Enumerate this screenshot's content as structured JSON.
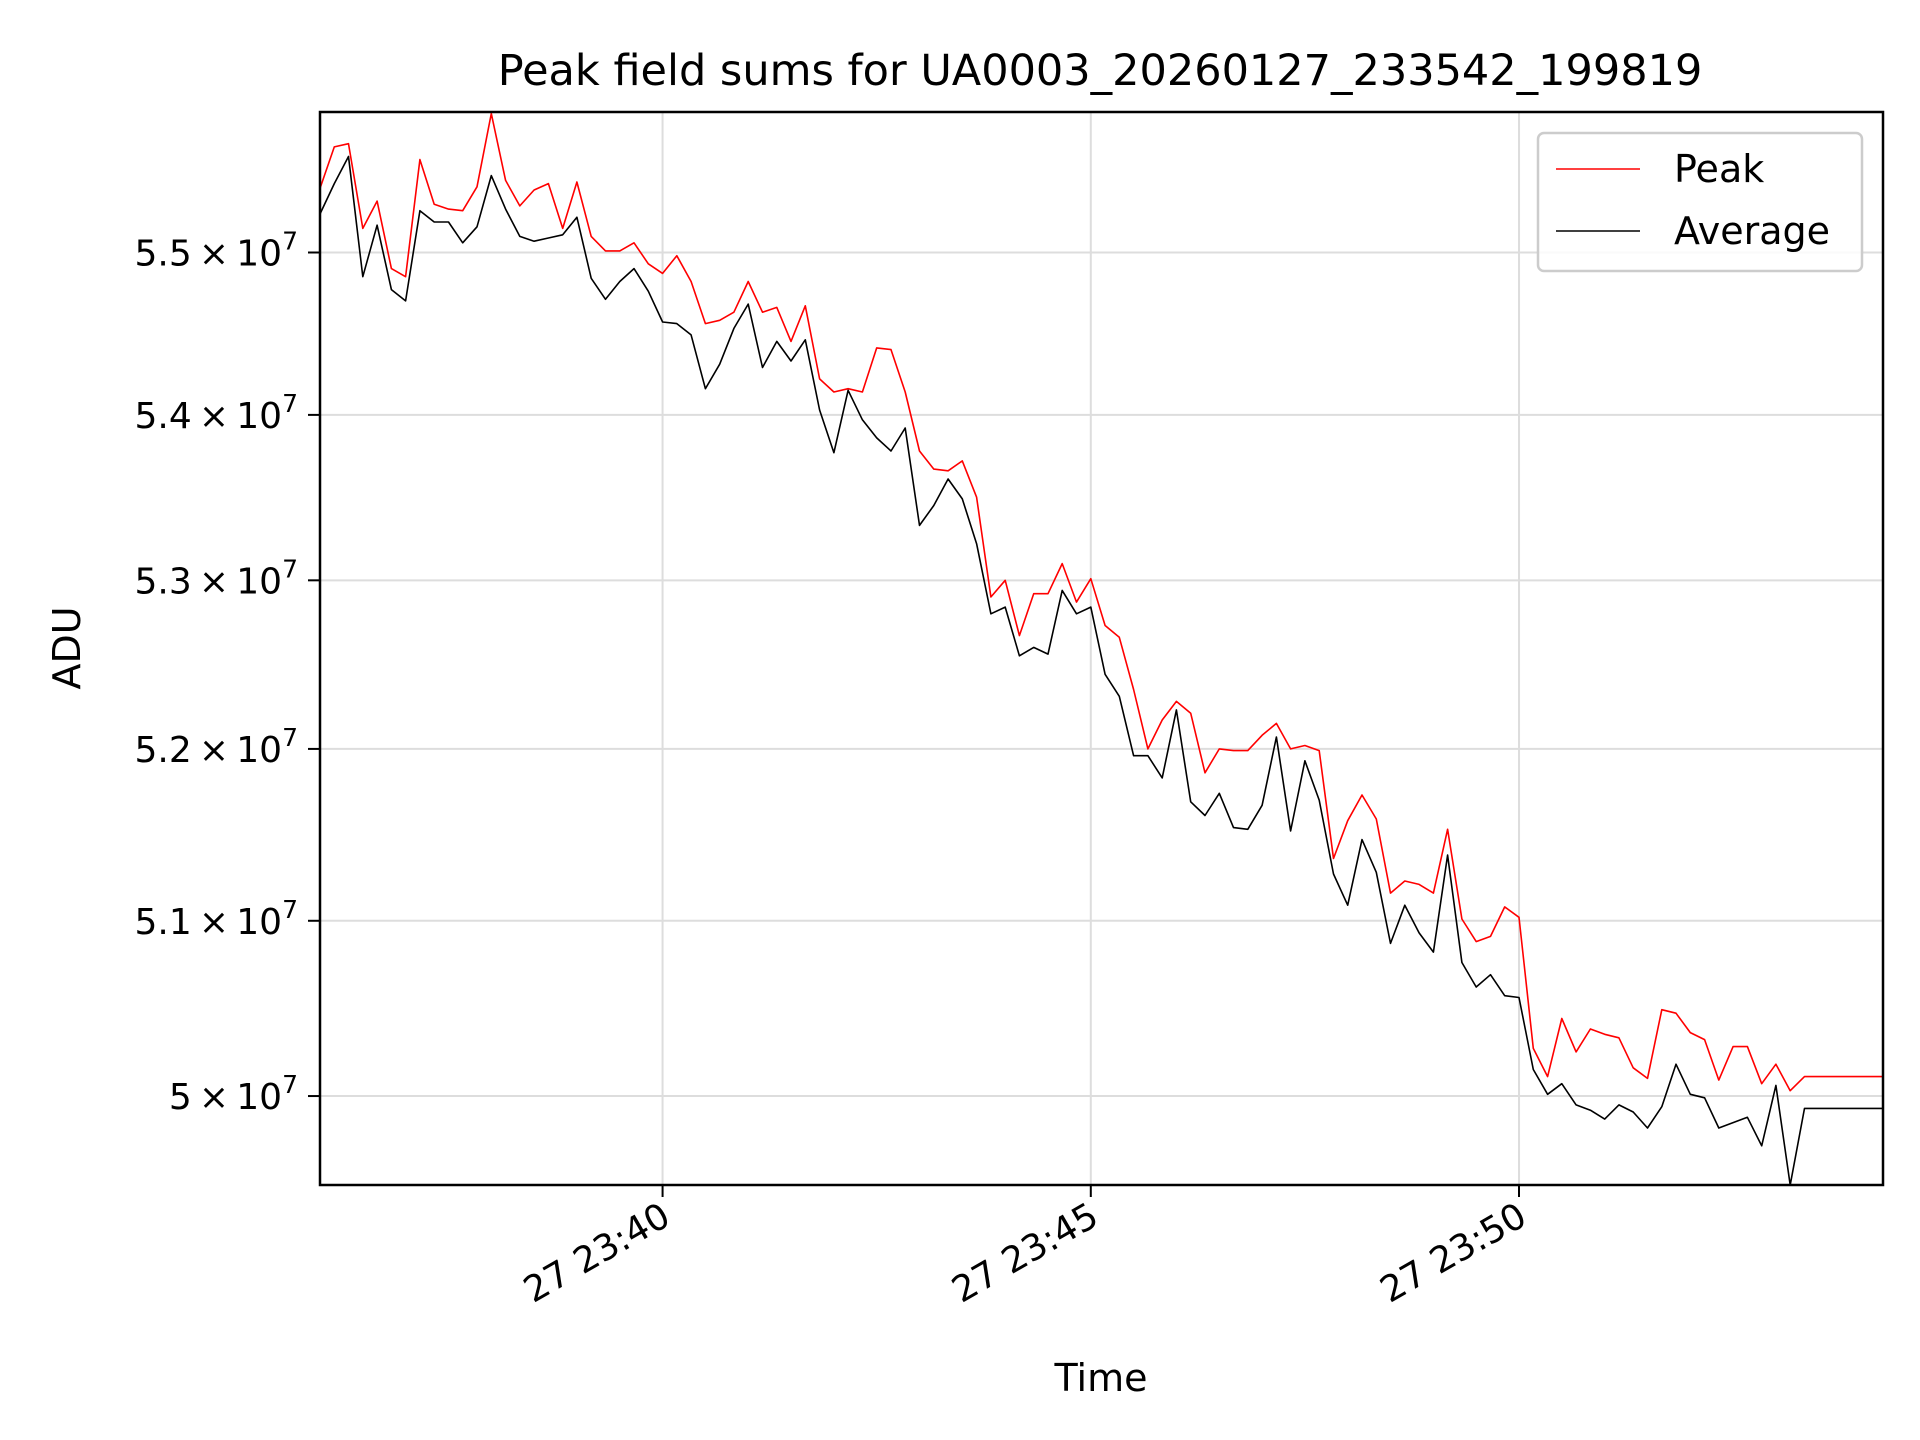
{
  "chart_data": {
    "type": "line",
    "title": "Peak field sums for UA0003_20260127_233542_199819",
    "xlabel": "Time",
    "ylabel": "ADU",
    "x_ticks": [
      {
        "value": "2026-01-27 23:40",
        "label": "27 23:40"
      },
      {
        "value": "2026-01-27 23:45",
        "label": "27 23:45"
      },
      {
        "value": "2026-01-27 23:50",
        "label": "27 23:50"
      }
    ],
    "y_ticks": [
      {
        "value": 50000000,
        "mantissa": "5",
        "base": "10",
        "exp": "7"
      },
      {
        "value": 51000000,
        "mantissa": "5.1",
        "base": "10",
        "exp": "7"
      },
      {
        "value": 52000000,
        "mantissa": "5.2",
        "base": "10",
        "exp": "7"
      },
      {
        "value": 53000000,
        "mantissa": "5.3",
        "base": "10",
        "exp": "7"
      },
      {
        "value": 54000000,
        "mantissa": "5.4",
        "base": "10",
        "exp": "7"
      },
      {
        "value": 55000000,
        "mantissa": "5.5",
        "base": "10",
        "exp": "7"
      }
    ],
    "xlim": [
      "2026-01-27 23:36:00",
      "2026-01-27 23:54:15"
    ],
    "ylim": [
      49500000,
      55880000
    ],
    "y_scale": "log",
    "grid": true,
    "legend_position": "top-right",
    "series": [
      {
        "name": "Peak",
        "color": "#ff0000",
        "points": [
          [
            "2026-01-27 23:36:00",
            55400000
          ],
          [
            "2026-01-27 23:36:10",
            55660000
          ],
          [
            "2026-01-27 23:36:20",
            55680000
          ],
          [
            "2026-01-27 23:36:30",
            55150000
          ],
          [
            "2026-01-27 23:36:40",
            55320000
          ],
          [
            "2026-01-27 23:36:50",
            54900000
          ],
          [
            "2026-01-27 23:37:00",
            54850000
          ],
          [
            "2026-01-27 23:37:10",
            55580000
          ],
          [
            "2026-01-27 23:37:20",
            55300000
          ],
          [
            "2026-01-27 23:37:30",
            55270000
          ],
          [
            "2026-01-27 23:37:40",
            55260000
          ],
          [
            "2026-01-27 23:37:50",
            55410000
          ],
          [
            "2026-01-27 23:38:00",
            55870000
          ],
          [
            "2026-01-27 23:38:10",
            55450000
          ],
          [
            "2026-01-27 23:38:20",
            55290000
          ],
          [
            "2026-01-27 23:38:30",
            55390000
          ],
          [
            "2026-01-27 23:38:40",
            55430000
          ],
          [
            "2026-01-27 23:38:50",
            55150000
          ],
          [
            "2026-01-27 23:39:00",
            55440000
          ],
          [
            "2026-01-27 23:39:10",
            55100000
          ],
          [
            "2026-01-27 23:39:20",
            55010000
          ],
          [
            "2026-01-27 23:39:30",
            55010000
          ],
          [
            "2026-01-27 23:39:40",
            55060000
          ],
          [
            "2026-01-27 23:39:50",
            54930000
          ],
          [
            "2026-01-27 23:40:00",
            54870000
          ],
          [
            "2026-01-27 23:40:10",
            54980000
          ],
          [
            "2026-01-27 23:40:20",
            54820000
          ],
          [
            "2026-01-27 23:40:30",
            54560000
          ],
          [
            "2026-01-27 23:40:40",
            54580000
          ],
          [
            "2026-01-27 23:40:50",
            54630000
          ],
          [
            "2026-01-27 23:41:00",
            54820000
          ],
          [
            "2026-01-27 23:41:10",
            54630000
          ],
          [
            "2026-01-27 23:41:20",
            54660000
          ],
          [
            "2026-01-27 23:41:30",
            54450000
          ],
          [
            "2026-01-27 23:41:40",
            54670000
          ],
          [
            "2026-01-27 23:41:50",
            54220000
          ],
          [
            "2026-01-27 23:42:00",
            54140000
          ],
          [
            "2026-01-27 23:42:10",
            54160000
          ],
          [
            "2026-01-27 23:42:20",
            54140000
          ],
          [
            "2026-01-27 23:42:30",
            54410000
          ],
          [
            "2026-01-27 23:42:40",
            54400000
          ],
          [
            "2026-01-27 23:42:50",
            54140000
          ],
          [
            "2026-01-27 23:43:00",
            53780000
          ],
          [
            "2026-01-27 23:43:10",
            53670000
          ],
          [
            "2026-01-27 23:43:20",
            53660000
          ],
          [
            "2026-01-27 23:43:30",
            53720000
          ],
          [
            "2026-01-27 23:43:40",
            53500000
          ],
          [
            "2026-01-27 23:43:50",
            52900000
          ],
          [
            "2026-01-27 23:44:00",
            53000000
          ],
          [
            "2026-01-27 23:44:10",
            52670000
          ],
          [
            "2026-01-27 23:44:20",
            52920000
          ],
          [
            "2026-01-27 23:44:30",
            52920000
          ],
          [
            "2026-01-27 23:44:40",
            53100000
          ],
          [
            "2026-01-27 23:44:50",
            52870000
          ],
          [
            "2026-01-27 23:45:00",
            53010000
          ],
          [
            "2026-01-27 23:45:10",
            52730000
          ],
          [
            "2026-01-27 23:45:20",
            52660000
          ],
          [
            "2026-01-27 23:45:30",
            52350000
          ],
          [
            "2026-01-27 23:45:40",
            52000000
          ],
          [
            "2026-01-27 23:45:50",
            52170000
          ],
          [
            "2026-01-27 23:46:00",
            52280000
          ],
          [
            "2026-01-27 23:46:10",
            52210000
          ],
          [
            "2026-01-27 23:46:20",
            51860000
          ],
          [
            "2026-01-27 23:46:30",
            52000000
          ],
          [
            "2026-01-27 23:46:40",
            51990000
          ],
          [
            "2026-01-27 23:46:50",
            51990000
          ],
          [
            "2026-01-27 23:47:00",
            52080000
          ],
          [
            "2026-01-27 23:47:10",
            52150000
          ],
          [
            "2026-01-27 23:47:20",
            52000000
          ],
          [
            "2026-01-27 23:47:30",
            52020000
          ],
          [
            "2026-01-27 23:47:40",
            51990000
          ],
          [
            "2026-01-27 23:47:50",
            51360000
          ],
          [
            "2026-01-27 23:48:00",
            51580000
          ],
          [
            "2026-01-27 23:48:10",
            51730000
          ],
          [
            "2026-01-27 23:48:20",
            51590000
          ],
          [
            "2026-01-27 23:48:30",
            51160000
          ],
          [
            "2026-01-27 23:48:40",
            51230000
          ],
          [
            "2026-01-27 23:48:50",
            51210000
          ],
          [
            "2026-01-27 23:49:00",
            51160000
          ],
          [
            "2026-01-27 23:49:10",
            51530000
          ],
          [
            "2026-01-27 23:49:20",
            51010000
          ],
          [
            "2026-01-27 23:49:30",
            50880000
          ],
          [
            "2026-01-27 23:49:40",
            50910000
          ],
          [
            "2026-01-27 23:49:50",
            51080000
          ],
          [
            "2026-01-27 23:50:00",
            51020000
          ],
          [
            "2026-01-27 23:50:10",
            50270000
          ],
          [
            "2026-01-27 23:50:20",
            50110000
          ],
          [
            "2026-01-27 23:50:30",
            50440000
          ],
          [
            "2026-01-27 23:50:40",
            50250000
          ],
          [
            "2026-01-27 23:50:50",
            50380000
          ],
          [
            "2026-01-27 23:51:00",
            50350000
          ],
          [
            "2026-01-27 23:51:10",
            50330000
          ],
          [
            "2026-01-27 23:51:20",
            50160000
          ],
          [
            "2026-01-27 23:51:30",
            50100000
          ],
          [
            "2026-01-27 23:51:40",
            50490000
          ],
          [
            "2026-01-27 23:51:50",
            50470000
          ],
          [
            "2026-01-27 23:52:00",
            50360000
          ],
          [
            "2026-01-27 23:52:10",
            50320000
          ],
          [
            "2026-01-27 23:52:20",
            50090000
          ],
          [
            "2026-01-27 23:52:30",
            50280000
          ],
          [
            "2026-01-27 23:52:40",
            50280000
          ],
          [
            "2026-01-27 23:52:50",
            50070000
          ],
          [
            "2026-01-27 23:53:00",
            50180000
          ],
          [
            "2026-01-27 23:53:10",
            50030000
          ],
          [
            "2026-01-27 23:53:20",
            50110000
          ],
          [
            "2026-01-27 23:54:15",
            50110000
          ]
        ]
      },
      {
        "name": "Average",
        "color": "#000000",
        "points": [
          [
            "2026-01-27 23:36:00",
            55240000
          ],
          [
            "2026-01-27 23:36:10",
            55430000
          ],
          [
            "2026-01-27 23:36:20",
            55600000
          ],
          [
            "2026-01-27 23:36:30",
            54850000
          ],
          [
            "2026-01-27 23:36:40",
            55170000
          ],
          [
            "2026-01-27 23:36:50",
            54770000
          ],
          [
            "2026-01-27 23:37:00",
            54700000
          ],
          [
            "2026-01-27 23:37:10",
            55260000
          ],
          [
            "2026-01-27 23:37:20",
            55190000
          ],
          [
            "2026-01-27 23:37:30",
            55190000
          ],
          [
            "2026-01-27 23:37:40",
            55060000
          ],
          [
            "2026-01-27 23:37:50",
            55160000
          ],
          [
            "2026-01-27 23:38:00",
            55480000
          ],
          [
            "2026-01-27 23:38:10",
            55270000
          ],
          [
            "2026-01-27 23:38:20",
            55100000
          ],
          [
            "2026-01-27 23:38:30",
            55070000
          ],
          [
            "2026-01-27 23:38:40",
            55090000
          ],
          [
            "2026-01-27 23:38:50",
            55110000
          ],
          [
            "2026-01-27 23:39:00",
            55220000
          ],
          [
            "2026-01-27 23:39:10",
            54840000
          ],
          [
            "2026-01-27 23:39:20",
            54710000
          ],
          [
            "2026-01-27 23:39:30",
            54820000
          ],
          [
            "2026-01-27 23:39:40",
            54900000
          ],
          [
            "2026-01-27 23:39:50",
            54760000
          ],
          [
            "2026-01-27 23:40:00",
            54570000
          ],
          [
            "2026-01-27 23:40:10",
            54560000
          ],
          [
            "2026-01-27 23:40:20",
            54490000
          ],
          [
            "2026-01-27 23:40:30",
            54160000
          ],
          [
            "2026-01-27 23:40:40",
            54310000
          ],
          [
            "2026-01-27 23:40:50",
            54530000
          ],
          [
            "2026-01-27 23:41:00",
            54680000
          ],
          [
            "2026-01-27 23:41:10",
            54290000
          ],
          [
            "2026-01-27 23:41:20",
            54450000
          ],
          [
            "2026-01-27 23:41:30",
            54330000
          ],
          [
            "2026-01-27 23:41:40",
            54460000
          ],
          [
            "2026-01-27 23:41:50",
            54030000
          ],
          [
            "2026-01-27 23:42:00",
            53770000
          ],
          [
            "2026-01-27 23:42:10",
            54150000
          ],
          [
            "2026-01-27 23:42:20",
            53970000
          ],
          [
            "2026-01-27 23:42:30",
            53860000
          ],
          [
            "2026-01-27 23:42:40",
            53780000
          ],
          [
            "2026-01-27 23:42:50",
            53920000
          ],
          [
            "2026-01-27 23:43:00",
            53330000
          ],
          [
            "2026-01-27 23:43:10",
            53450000
          ],
          [
            "2026-01-27 23:43:20",
            53610000
          ],
          [
            "2026-01-27 23:43:30",
            53490000
          ],
          [
            "2026-01-27 23:43:40",
            53220000
          ],
          [
            "2026-01-27 23:43:50",
            52800000
          ],
          [
            "2026-01-27 23:44:00",
            52840000
          ],
          [
            "2026-01-27 23:44:10",
            52550000
          ],
          [
            "2026-01-27 23:44:20",
            52600000
          ],
          [
            "2026-01-27 23:44:30",
            52560000
          ],
          [
            "2026-01-27 23:44:40",
            52940000
          ],
          [
            "2026-01-27 23:44:50",
            52800000
          ],
          [
            "2026-01-27 23:45:00",
            52840000
          ],
          [
            "2026-01-27 23:45:10",
            52440000
          ],
          [
            "2026-01-27 23:45:20",
            52310000
          ],
          [
            "2026-01-27 23:45:30",
            51960000
          ],
          [
            "2026-01-27 23:45:40",
            51960000
          ],
          [
            "2026-01-27 23:45:50",
            51830000
          ],
          [
            "2026-01-27 23:46:00",
            52230000
          ],
          [
            "2026-01-27 23:46:10",
            51690000
          ],
          [
            "2026-01-27 23:46:20",
            51610000
          ],
          [
            "2026-01-27 23:46:30",
            51740000
          ],
          [
            "2026-01-27 23:46:40",
            51540000
          ],
          [
            "2026-01-27 23:46:50",
            51530000
          ],
          [
            "2026-01-27 23:47:00",
            51670000
          ],
          [
            "2026-01-27 23:47:10",
            52070000
          ],
          [
            "2026-01-27 23:47:20",
            51520000
          ],
          [
            "2026-01-27 23:47:30",
            51930000
          ],
          [
            "2026-01-27 23:47:40",
            51700000
          ],
          [
            "2026-01-27 23:47:50",
            51270000
          ],
          [
            "2026-01-27 23:48:00",
            51090000
          ],
          [
            "2026-01-27 23:48:10",
            51470000
          ],
          [
            "2026-01-27 23:48:20",
            51280000
          ],
          [
            "2026-01-27 23:48:30",
            50870000
          ],
          [
            "2026-01-27 23:48:40",
            51090000
          ],
          [
            "2026-01-27 23:48:50",
            50930000
          ],
          [
            "2026-01-27 23:49:00",
            50820000
          ],
          [
            "2026-01-27 23:49:10",
            51380000
          ],
          [
            "2026-01-27 23:49:20",
            50760000
          ],
          [
            "2026-01-27 23:49:30",
            50620000
          ],
          [
            "2026-01-27 23:49:40",
            50690000
          ],
          [
            "2026-01-27 23:49:50",
            50570000
          ],
          [
            "2026-01-27 23:50:00",
            50560000
          ],
          [
            "2026-01-27 23:50:10",
            50150000
          ],
          [
            "2026-01-27 23:50:20",
            50010000
          ],
          [
            "2026-01-27 23:50:30",
            50070000
          ],
          [
            "2026-01-27 23:50:40",
            49950000
          ],
          [
            "2026-01-27 23:50:50",
            49920000
          ],
          [
            "2026-01-27 23:51:00",
            49870000
          ],
          [
            "2026-01-27 23:51:10",
            49950000
          ],
          [
            "2026-01-27 23:51:20",
            49910000
          ],
          [
            "2026-01-27 23:51:30",
            49820000
          ],
          [
            "2026-01-27 23:51:40",
            49940000
          ],
          [
            "2026-01-27 23:51:50",
            50180000
          ],
          [
            "2026-01-27 23:52:00",
            50010000
          ],
          [
            "2026-01-27 23:52:10",
            49990000
          ],
          [
            "2026-01-27 23:52:20",
            49820000
          ],
          [
            "2026-01-27 23:52:30",
            49850000
          ],
          [
            "2026-01-27 23:52:40",
            49880000
          ],
          [
            "2026-01-27 23:52:50",
            49720000
          ],
          [
            "2026-01-27 23:53:00",
            50060000
          ],
          [
            "2026-01-27 23:53:10",
            49500000
          ],
          [
            "2026-01-27 23:53:20",
            49930000
          ],
          [
            "2026-01-27 23:54:15",
            49930000
          ]
        ]
      }
    ]
  }
}
